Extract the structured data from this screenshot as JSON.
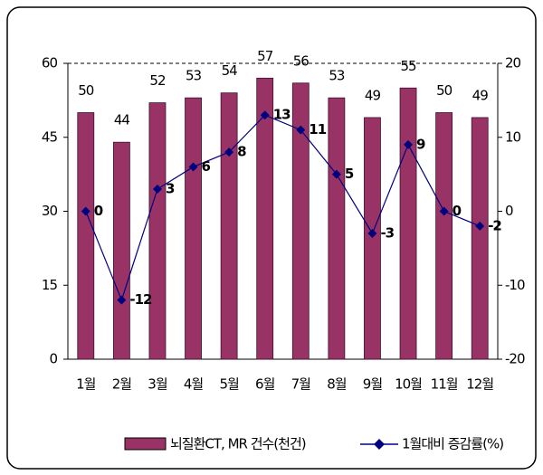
{
  "chart_data": {
    "type": "bar-line",
    "categories": [
      "1월",
      "2월",
      "3월",
      "4월",
      "5월",
      "6월",
      "7월",
      "8월",
      "9월",
      "10월",
      "11월",
      "12월"
    ],
    "series": [
      {
        "name": "뇌질환CT, MR 건수(천건)",
        "color": "#993366",
        "type": "bar",
        "values": [
          50,
          44,
          52,
          53,
          54,
          57,
          56,
          53,
          49,
          55,
          50,
          49
        ]
      },
      {
        "name": "1월대비 증감률(%)",
        "color": "#000080",
        "type": "line",
        "axis": "y2",
        "values": [
          0,
          -12,
          3,
          6,
          8,
          13,
          11,
          5,
          -3,
          9,
          0,
          -2
        ]
      }
    ],
    "ylim": [
      0,
      60
    ],
    "yticks": [
      0,
      15,
      30,
      45,
      60
    ],
    "y2lim": [
      -20,
      20
    ],
    "y2ticks": [
      -20,
      -10,
      0,
      10,
      20
    ]
  }
}
